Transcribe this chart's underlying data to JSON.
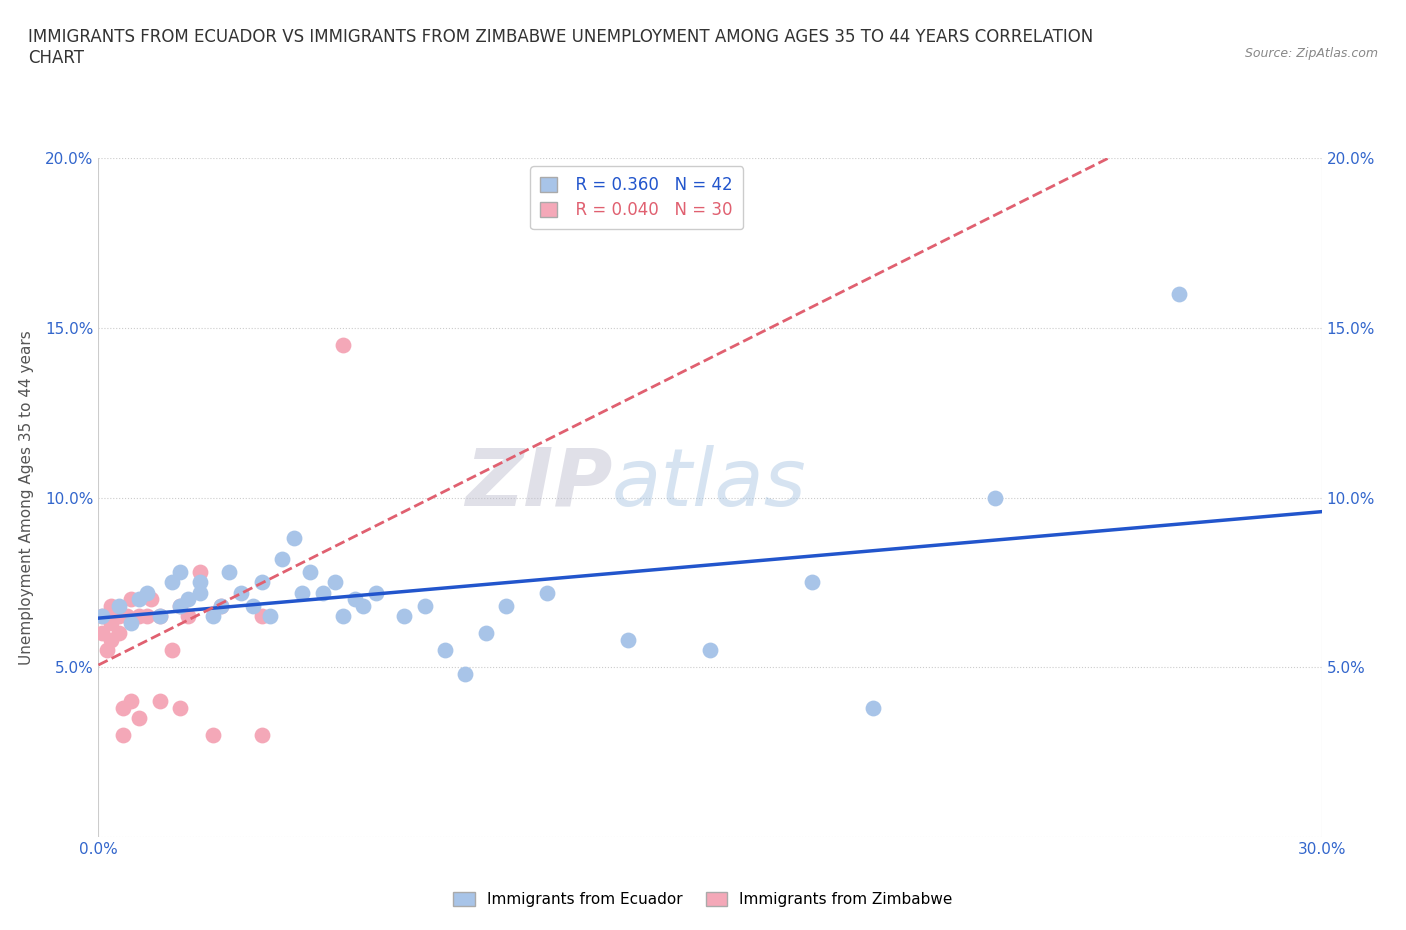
{
  "title": "IMMIGRANTS FROM ECUADOR VS IMMIGRANTS FROM ZIMBABWE UNEMPLOYMENT AMONG AGES 35 TO 44 YEARS CORRELATION\nCHART",
  "source_text": "Source: ZipAtlas.com",
  "ylabel": "Unemployment Among Ages 35 to 44 years",
  "xlim": [
    0.0,
    0.3
  ],
  "ylim": [
    0.0,
    0.2
  ],
  "xticks": [
    0.0,
    0.05,
    0.1,
    0.15,
    0.2,
    0.25,
    0.3
  ],
  "yticks": [
    0.0,
    0.05,
    0.1,
    0.15,
    0.2
  ],
  "ecuador_color": "#A8C4E8",
  "zimbabwe_color": "#F4A8B8",
  "ecuador_line_color": "#2255CC",
  "zimbabwe_line_color": "#E06070",
  "background_color": "#FFFFFF",
  "watermark_zip": "ZIP",
  "watermark_atlas": "atlas",
  "ecuador_R": 0.36,
  "ecuador_N": 42,
  "zimbabwe_R": 0.04,
  "zimbabwe_N": 30,
  "ecuador_x": [
    0.001,
    0.005,
    0.008,
    0.01,
    0.012,
    0.015,
    0.018,
    0.02,
    0.02,
    0.022,
    0.025,
    0.025,
    0.028,
    0.03,
    0.032,
    0.035,
    0.038,
    0.04,
    0.042,
    0.045,
    0.048,
    0.05,
    0.052,
    0.055,
    0.058,
    0.06,
    0.063,
    0.065,
    0.068,
    0.075,
    0.08,
    0.085,
    0.09,
    0.095,
    0.1,
    0.11,
    0.13,
    0.15,
    0.175,
    0.19,
    0.22,
    0.265
  ],
  "ecuador_y": [
    0.065,
    0.068,
    0.063,
    0.07,
    0.072,
    0.065,
    0.075,
    0.068,
    0.078,
    0.07,
    0.072,
    0.075,
    0.065,
    0.068,
    0.078,
    0.072,
    0.068,
    0.075,
    0.065,
    0.082,
    0.088,
    0.072,
    0.078,
    0.072,
    0.075,
    0.065,
    0.07,
    0.068,
    0.072,
    0.065,
    0.068,
    0.055,
    0.048,
    0.06,
    0.068,
    0.072,
    0.058,
    0.055,
    0.075,
    0.038,
    0.1,
    0.16
  ],
  "zimbabwe_x": [
    0.001,
    0.001,
    0.002,
    0.002,
    0.003,
    0.003,
    0.003,
    0.005,
    0.005,
    0.006,
    0.006,
    0.007,
    0.008,
    0.008,
    0.01,
    0.01,
    0.012,
    0.013,
    0.015,
    0.015,
    0.018,
    0.02,
    0.02,
    0.022,
    0.025,
    0.028,
    0.03,
    0.04,
    0.04,
    0.06
  ],
  "zimbabwe_y": [
    0.065,
    0.06,
    0.065,
    0.055,
    0.068,
    0.063,
    0.058,
    0.065,
    0.06,
    0.038,
    0.03,
    0.065,
    0.07,
    0.04,
    0.065,
    0.035,
    0.065,
    0.07,
    0.065,
    0.04,
    0.055,
    0.068,
    0.038,
    0.065,
    0.078,
    0.03,
    0.068,
    0.065,
    0.03,
    0.145
  ],
  "title_fontsize": 12,
  "label_fontsize": 11,
  "tick_fontsize": 11,
  "source_fontsize": 9
}
